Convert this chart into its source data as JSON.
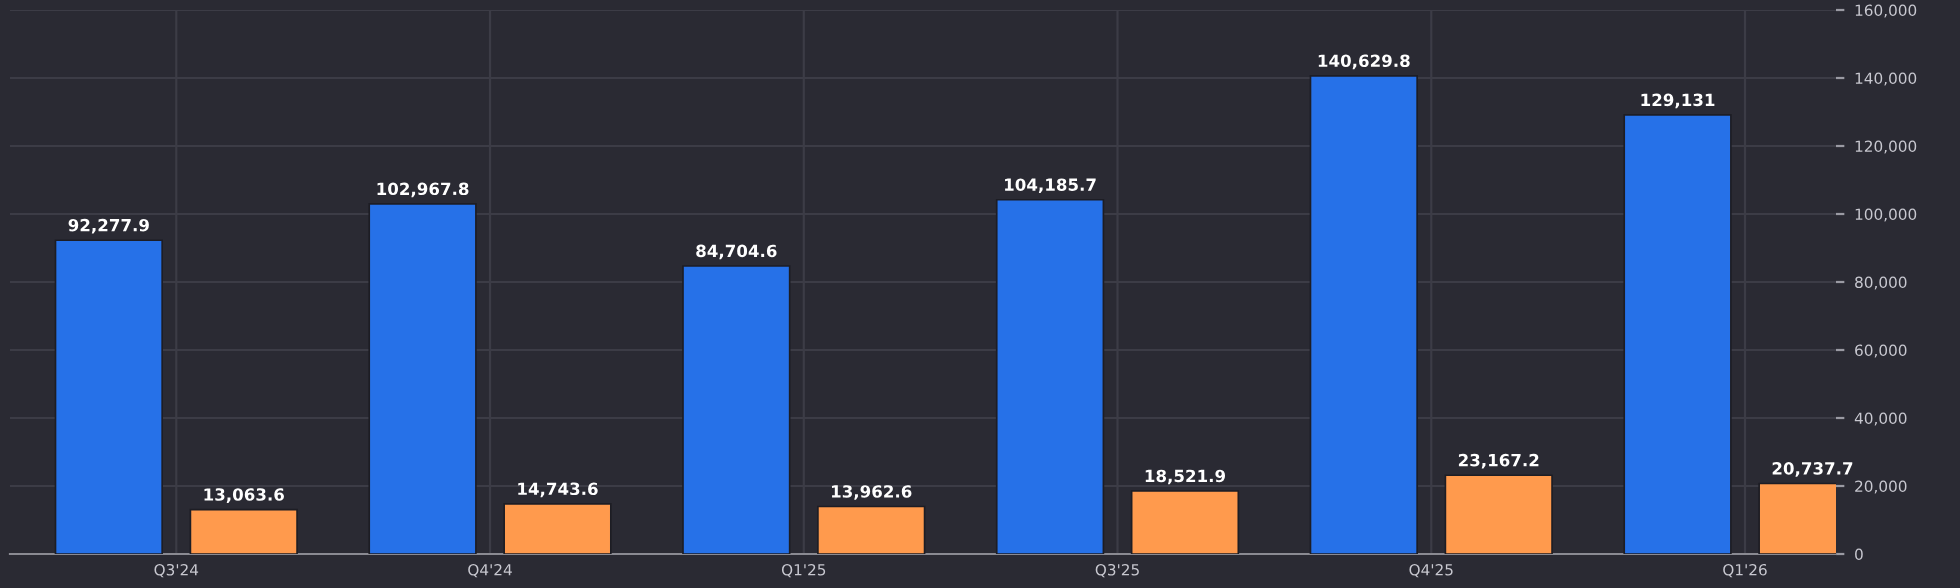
{
  "chart_data": {
    "type": "bar",
    "categories": [
      "Q3'24",
      "Q4'24",
      "Q1'25",
      "Q3'25",
      "Q4'25",
      "Q1'26"
    ],
    "series": [
      {
        "color": "#2671e8",
        "values": [
          92277.9,
          102967.8,
          84704.6,
          104185.7,
          140629.8,
          129131
        ],
        "value_labels": [
          "92,277.9",
          "102,967.8",
          "84,704.6",
          "104,185.7",
          "140,629.8",
          "129,131"
        ]
      },
      {
        "color": "#ff9a4d",
        "values": [
          13063.6,
          14743.6,
          13962.6,
          18521.9,
          23167.2,
          20737.7
        ],
        "value_labels": [
          "13,063.6",
          "14,743.6",
          "13,962.6",
          "18,521.9",
          "23,167.2",
          "20,737.7"
        ]
      }
    ],
    "ylim": [
      0,
      160000
    ],
    "yticks": [
      {
        "value": 0,
        "label": "0"
      },
      {
        "value": 20000,
        "label": "20,000"
      },
      {
        "value": 40000,
        "label": "40,000"
      },
      {
        "value": 60000,
        "label": "60,000"
      },
      {
        "value": 80000,
        "label": "80,000"
      },
      {
        "value": 100000,
        "label": "100,000"
      },
      {
        "value": 120000,
        "label": "120,000"
      },
      {
        "value": 140000,
        "label": "140,000"
      },
      {
        "value": 160000,
        "label": "160,000"
      }
    ],
    "grid": true,
    "legend": false
  }
}
